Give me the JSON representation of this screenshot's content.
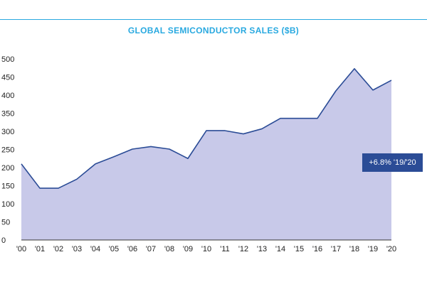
{
  "colors": {
    "accent": "#29a9e0",
    "line": "#2b4c96",
    "area_fill": "#c8c9e9",
    "callout_bg": "#2b4c96"
  },
  "chart_data": {
    "type": "area",
    "title": "GLOBAL SEMICONDUCTOR SALES ($B)",
    "xlabel": "",
    "ylabel": "",
    "categories": [
      "'00",
      "'01",
      "'02",
      "'03",
      "'04",
      "'05",
      "'06",
      "'07",
      "'08",
      "'09",
      "'10",
      "'11",
      "'12",
      "'13",
      "'14",
      "'15",
      "'16",
      "'17",
      "'18",
      "'19",
      "'20"
    ],
    "values": [
      210,
      143,
      143,
      168,
      210,
      230,
      251,
      258,
      251,
      225,
      302,
      302,
      293,
      307,
      336,
      336,
      336,
      412,
      473,
      414,
      441
    ],
    "ylim": [
      0,
      500
    ],
    "yticks": [
      0,
      50,
      100,
      150,
      200,
      250,
      300,
      350,
      400,
      450,
      500
    ],
    "grid": false,
    "annotation": "+6.8% '19/'20"
  }
}
